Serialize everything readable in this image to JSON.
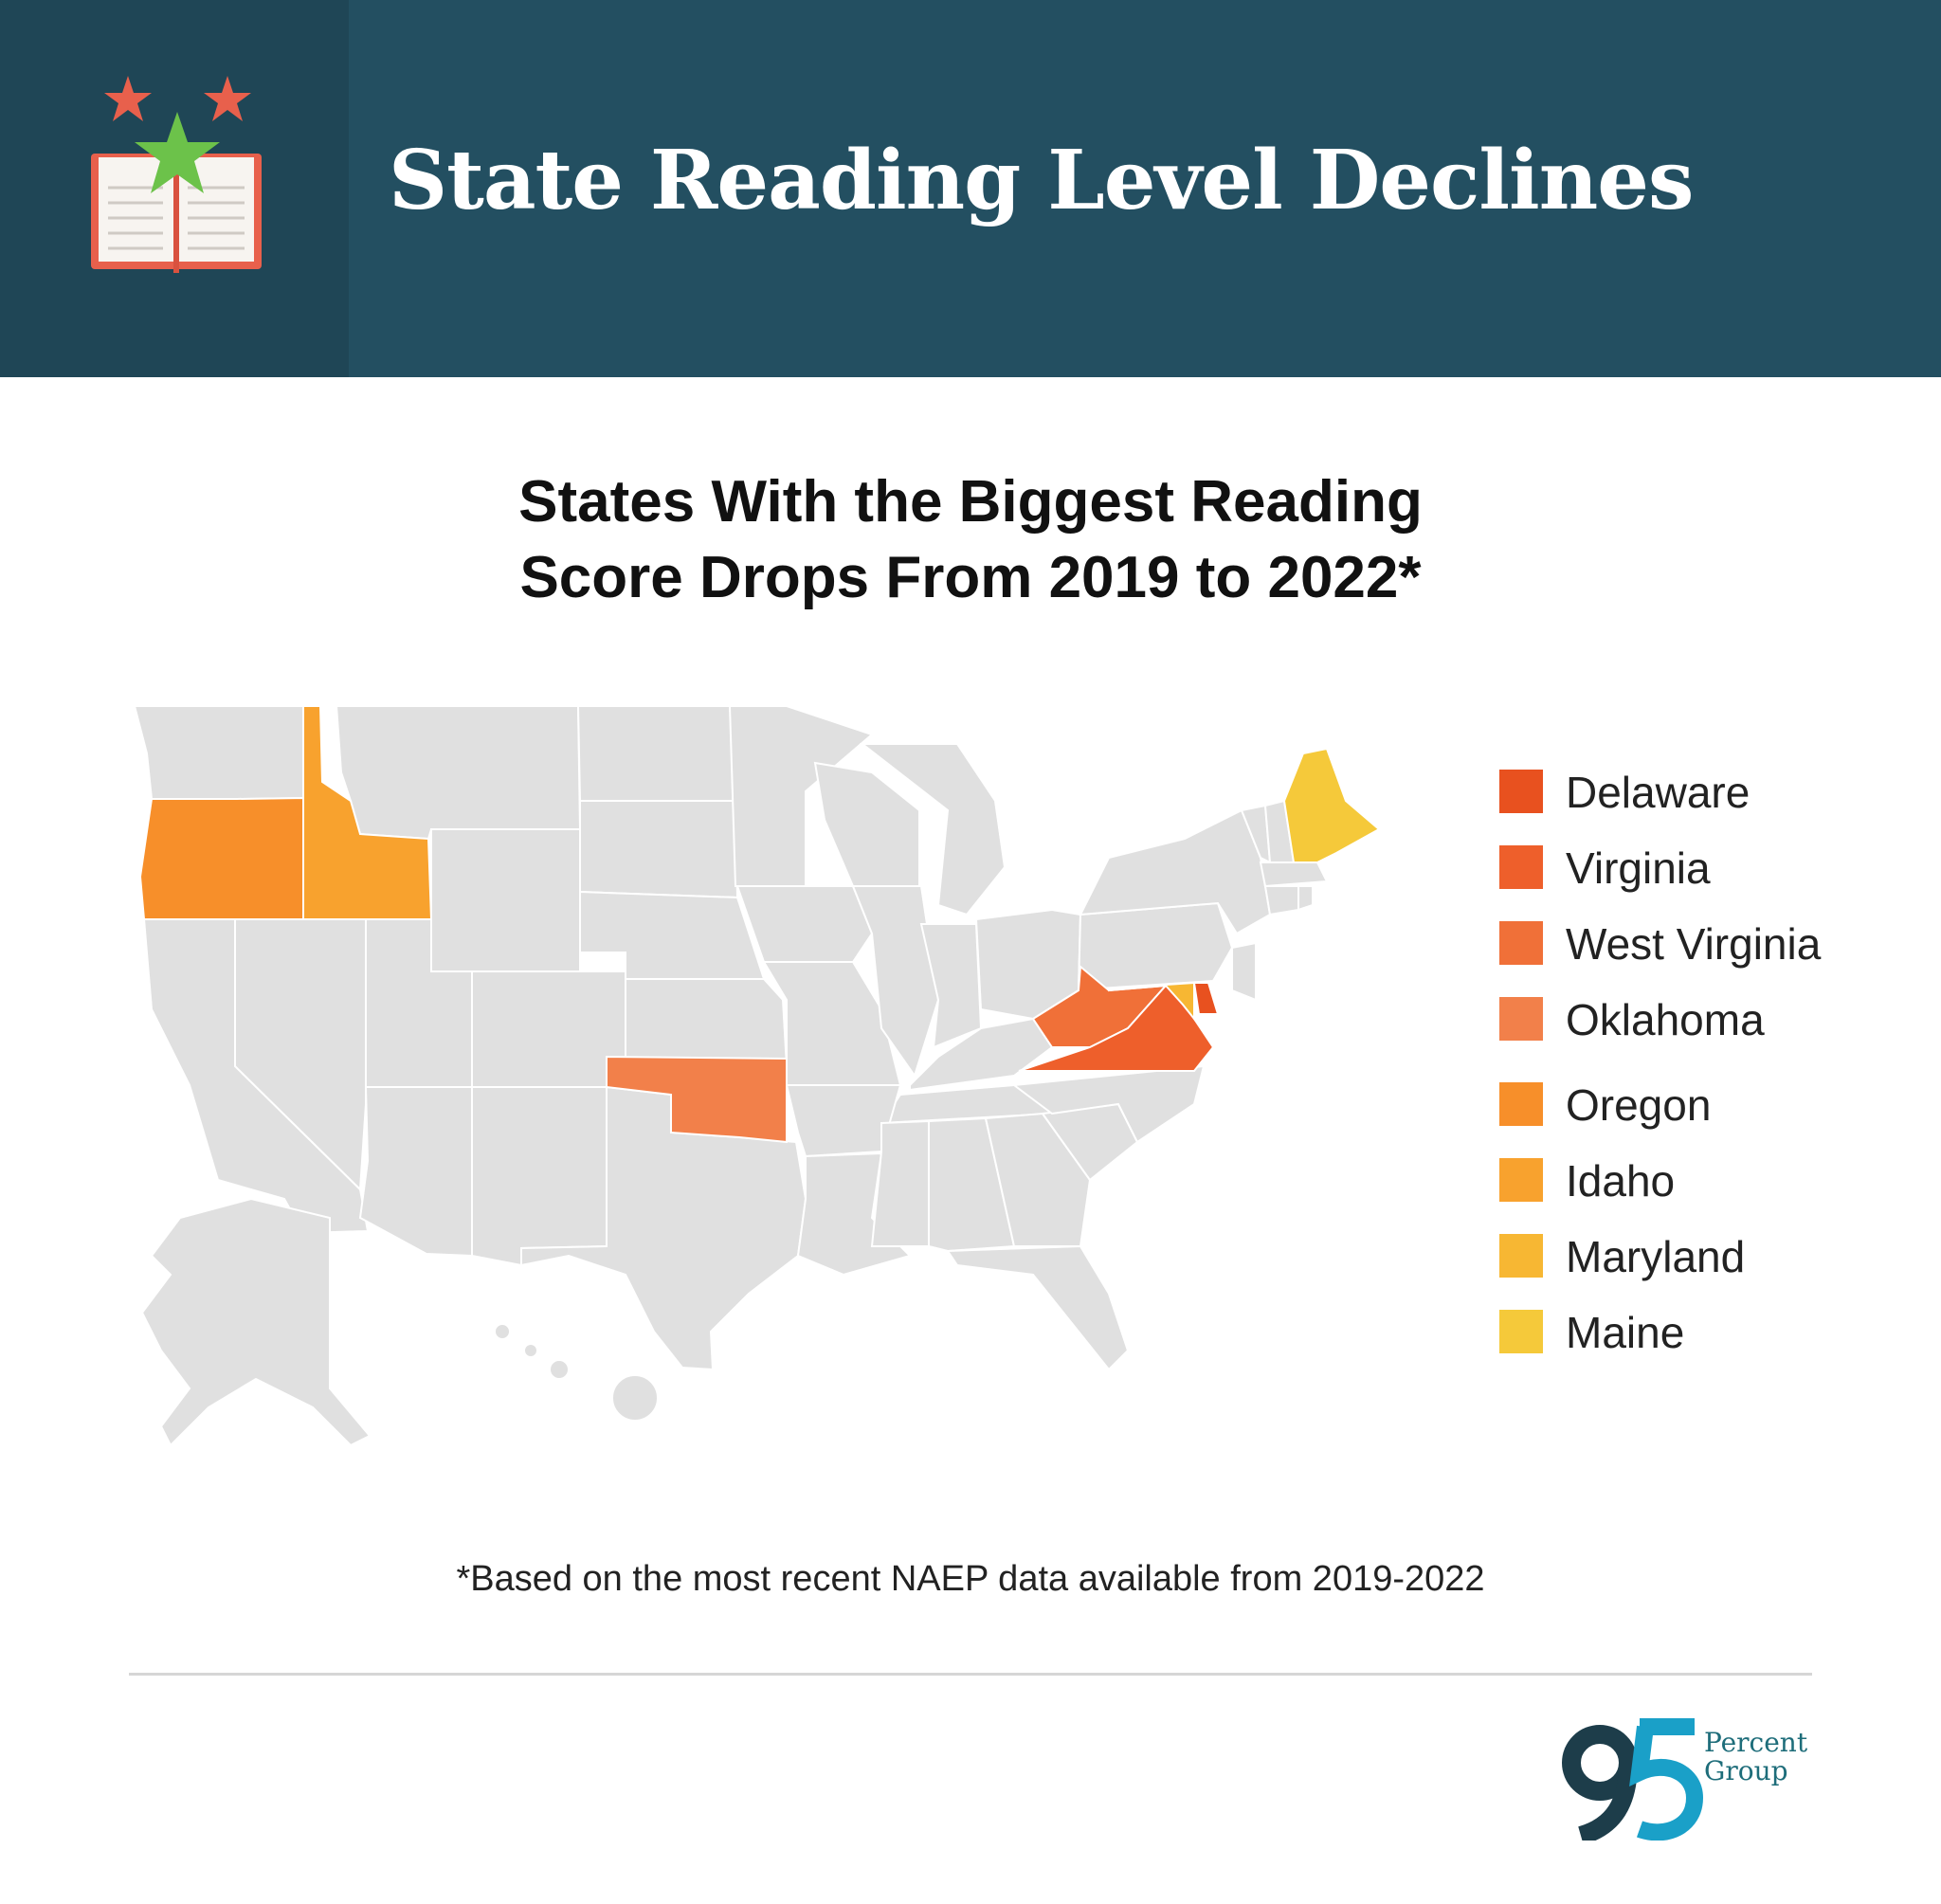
{
  "header": {
    "title": "State Reading Level Declines"
  },
  "icon": {
    "name": "book-stars-icon",
    "star_color": "#e8604c",
    "center_star_color": "#6cc24a",
    "book_color": "#e8604c"
  },
  "map": {
    "title_lines": [
      "States With the Biggest Reading",
      "Score Drops From 2019 to 2022*"
    ],
    "base_color": "#e0e0e0",
    "highlighted_states": [
      {
        "name": "Delaware",
        "color": "#e8511f"
      },
      {
        "name": "Virginia",
        "color": "#ee5f2b"
      },
      {
        "name": "West Virginia",
        "color": "#f07038"
      },
      {
        "name": "Oklahoma",
        "color": "#f2804a"
      },
      {
        "name": "Oregon",
        "color": "#f78f2a"
      },
      {
        "name": "Idaho",
        "color": "#f8a22e"
      },
      {
        "name": "Maryland",
        "color": "#f7b733"
      },
      {
        "name": "Maine",
        "color": "#f5c93a"
      }
    ]
  },
  "footnote": "*Based on the most recent NAEP data available from 2019-2022",
  "logo": {
    "number": "95",
    "line1": "Percent",
    "line2": "Group",
    "dark_color": "#1d3d4a",
    "accent_color": "#1aa0c8"
  }
}
